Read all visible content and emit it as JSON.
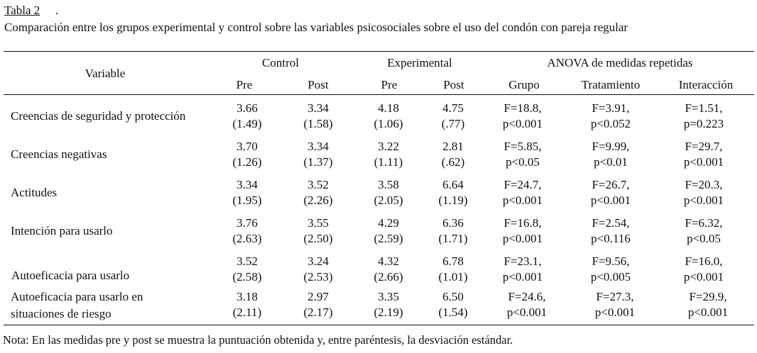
{
  "table": {
    "number_label": "Tabla 2",
    "title": "Comparación entre los grupos experimental y control sobre las variables psicosociales sobre el uso del condón con pareja regular",
    "header": {
      "variable": "Variable",
      "groups": [
        "Control",
        "Experimental",
        "ANOVA de medidas repetidas"
      ],
      "subcolumns": [
        "Pre",
        "Post",
        "Pre",
        "Post",
        "Grupo",
        "Tratamiento",
        "Interacción"
      ]
    },
    "rows": [
      {
        "variable": [
          "Creencias de seguridad y protección"
        ],
        "control_pre": {
          "mean": "3.66",
          "sd": "(1.49)"
        },
        "control_post": {
          "mean": "3.34",
          "sd": "(1.58)"
        },
        "exp_pre": {
          "mean": "4.18",
          "sd": "(1.06)"
        },
        "exp_post": {
          "mean": "4.75",
          "sd": "(.77)"
        },
        "grupo": {
          "f": "F=18.8,",
          "p": "p<0.001"
        },
        "tratamiento": {
          "f": "F=3.91,",
          "p": "p<0.052"
        },
        "interaccion": {
          "f": "F=1.51,",
          "p": "p=0.223"
        }
      },
      {
        "variable": [
          "Creencias negativas"
        ],
        "control_pre": {
          "mean": "3.70",
          "sd": "(1.26)"
        },
        "control_post": {
          "mean": "3.34",
          "sd": "(1.37)"
        },
        "exp_pre": {
          "mean": "3.22",
          "sd": "(1.11)"
        },
        "exp_post": {
          "mean": "2.81",
          "sd": "(.62)"
        },
        "grupo": {
          "f": "F=5.85,",
          "p": "p<0.05"
        },
        "tratamiento": {
          "f": "F=9.99,",
          "p": "p<0.01"
        },
        "interaccion": {
          "f": "F=29.7,",
          "p": "p<0.001"
        }
      },
      {
        "variable": [
          "Actitudes"
        ],
        "control_pre": {
          "mean": "3.34",
          "sd": "(1.95)"
        },
        "control_post": {
          "mean": "3.52",
          "sd": "(2.26)"
        },
        "exp_pre": {
          "mean": "3.58",
          "sd": "(2.05)"
        },
        "exp_post": {
          "mean": "6.64",
          "sd": "(1.19)"
        },
        "grupo": {
          "f": "F=24.7,",
          "p": "p<0.001"
        },
        "tratamiento": {
          "f": "F=26.7,",
          "p": "p<0.001"
        },
        "interaccion": {
          "f": "F=20.3,",
          "p": "p<0.001"
        }
      },
      {
        "variable": [
          "Intención para usarlo"
        ],
        "control_pre": {
          "mean": "3.76",
          "sd": "(2.63)"
        },
        "control_post": {
          "mean": "3.55",
          "sd": "(2.50)"
        },
        "exp_pre": {
          "mean": "4.29",
          "sd": "(2.59)"
        },
        "exp_post": {
          "mean": "6.36",
          "sd": "(1.71)"
        },
        "grupo": {
          "f": "F=16.8,",
          "p": "p<0.001"
        },
        "tratamiento": {
          "f": "F=2.54,",
          "p": "p<0.116"
        },
        "interaccion": {
          "f": "F=6.32,",
          "p": "p<0.05"
        }
      },
      {
        "variable": [
          "Autoeficacia para usarlo"
        ],
        "control_pre": {
          "mean": "3.52",
          "sd": "(2.58)"
        },
        "control_post": {
          "mean": "3.24",
          "sd": "(2.53)"
        },
        "exp_pre": {
          "mean": "4.32",
          "sd": "(2.66)"
        },
        "exp_post": {
          "mean": "6.78",
          "sd": "(1.01)"
        },
        "grupo": {
          "f": "F=23.1,",
          "p": "p<0.001"
        },
        "tratamiento": {
          "f": "F=9.56,",
          "p": "p<0.005"
        },
        "interaccion": {
          "f": "F=16.0,",
          "p": "p<0.001"
        }
      },
      {
        "variable": [
          "Autoeficacia para usarlo en",
          "situaciones de riesgo"
        ],
        "control_pre": {
          "mean": "3.18",
          "sd": "(2.11)"
        },
        "control_post": {
          "mean": "2.97",
          "sd": "(2.17)"
        },
        "exp_pre": {
          "mean": "3.35",
          "sd": "(2.19)"
        },
        "exp_post": {
          "mean": "6.50",
          "sd": "(1.54)"
        },
        "grupo": {
          "f": "F=24.6,",
          "p": "p<0.001"
        },
        "tratamiento": {
          "f": "F=27.3,",
          "p": "p<0.001"
        },
        "interaccion": {
          "f": "F=29.9,",
          "p": "p<0.001"
        }
      }
    ],
    "note": "Nota: En las medidas pre y post se muestra la puntuación obtenida y, entre paréntesis, la desviación estándar."
  }
}
